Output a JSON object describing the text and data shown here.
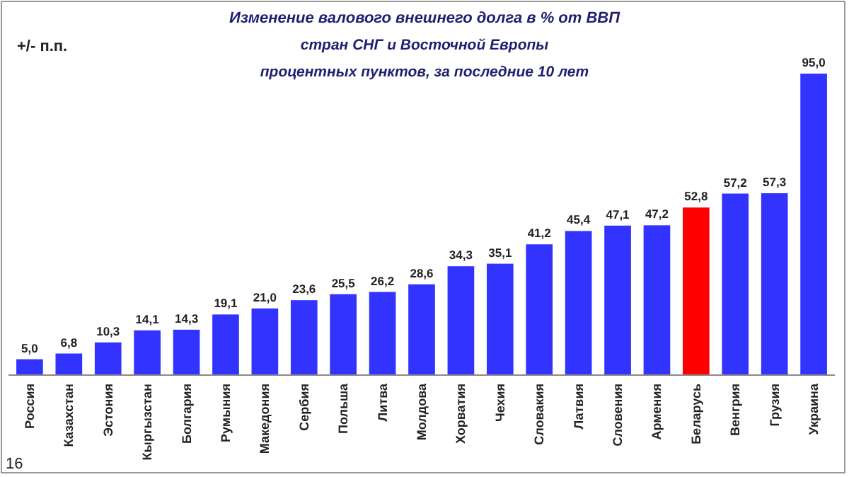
{
  "chart_data": {
    "type": "bar",
    "title": "Изменение валового внешнего долга в % от ВВП",
    "subtitle": "стран СНГ и Восточной Европы\nпроцентных пунктов, за последние  10 лет",
    "ylabel": "+/-  п.п.",
    "annotations": [
      "16"
    ],
    "categories": [
      "Россия",
      "Казахстан",
      "Эстония",
      "Кыргызстан",
      "Болгария",
      "Румыния",
      "Македония",
      "Сербия",
      "Польша",
      "Литва",
      "Молдова",
      "Хорватия",
      "Чехия",
      "Словакия",
      "Латвия",
      "Словения",
      "Армения",
      "Беларусь",
      "Венгрия",
      "Грузия",
      "Украина"
    ],
    "values": [
      5.0,
      6.8,
      10.3,
      14.1,
      14.3,
      19.1,
      21.0,
      23.6,
      25.5,
      26.2,
      28.6,
      34.3,
      35.1,
      41.2,
      45.4,
      47.1,
      47.2,
      52.8,
      57.2,
      57.3,
      95.0
    ],
    "value_labels": [
      "5,0",
      "6,8",
      "10,3",
      "14,1",
      "14,3",
      "19,1",
      "21,0",
      "23,6",
      "25,5",
      "26,2",
      "28,6",
      "34,3",
      "35,1",
      "41,2",
      "45,4",
      "47,1",
      "47,2",
      "52,8",
      "57,2",
      "57,3",
      "95,0"
    ],
    "colors": [
      "#3333ff",
      "#3333ff",
      "#3333ff",
      "#3333ff",
      "#3333ff",
      "#3333ff",
      "#3333ff",
      "#3333ff",
      "#3333ff",
      "#3333ff",
      "#3333ff",
      "#3333ff",
      "#3333ff",
      "#3333ff",
      "#3333ff",
      "#3333ff",
      "#3333ff",
      "#ff0000",
      "#3333ff",
      "#3333ff",
      "#3333ff"
    ],
    "data_labels": false
  }
}
